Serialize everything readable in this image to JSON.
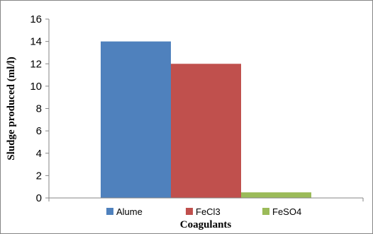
{
  "chart_data": {
    "type": "bar",
    "title": "",
    "xlabel": "Coagulants",
    "ylabel": "Sludge produced (ml/l)",
    "ylim": [
      0,
      16
    ],
    "yticks": [
      0,
      2,
      4,
      6,
      8,
      10,
      12,
      14,
      16
    ],
    "grid": false,
    "legend_position": "bottom",
    "series": [
      {
        "name": "Alume",
        "values": [
          14
        ],
        "color": "#4f81bd"
      },
      {
        "name": "FeCl3",
        "values": [
          12
        ],
        "color": "#c0504d"
      },
      {
        "name": "FeSO4",
        "values": [
          0.5
        ],
        "color": "#9bbb59"
      }
    ]
  }
}
